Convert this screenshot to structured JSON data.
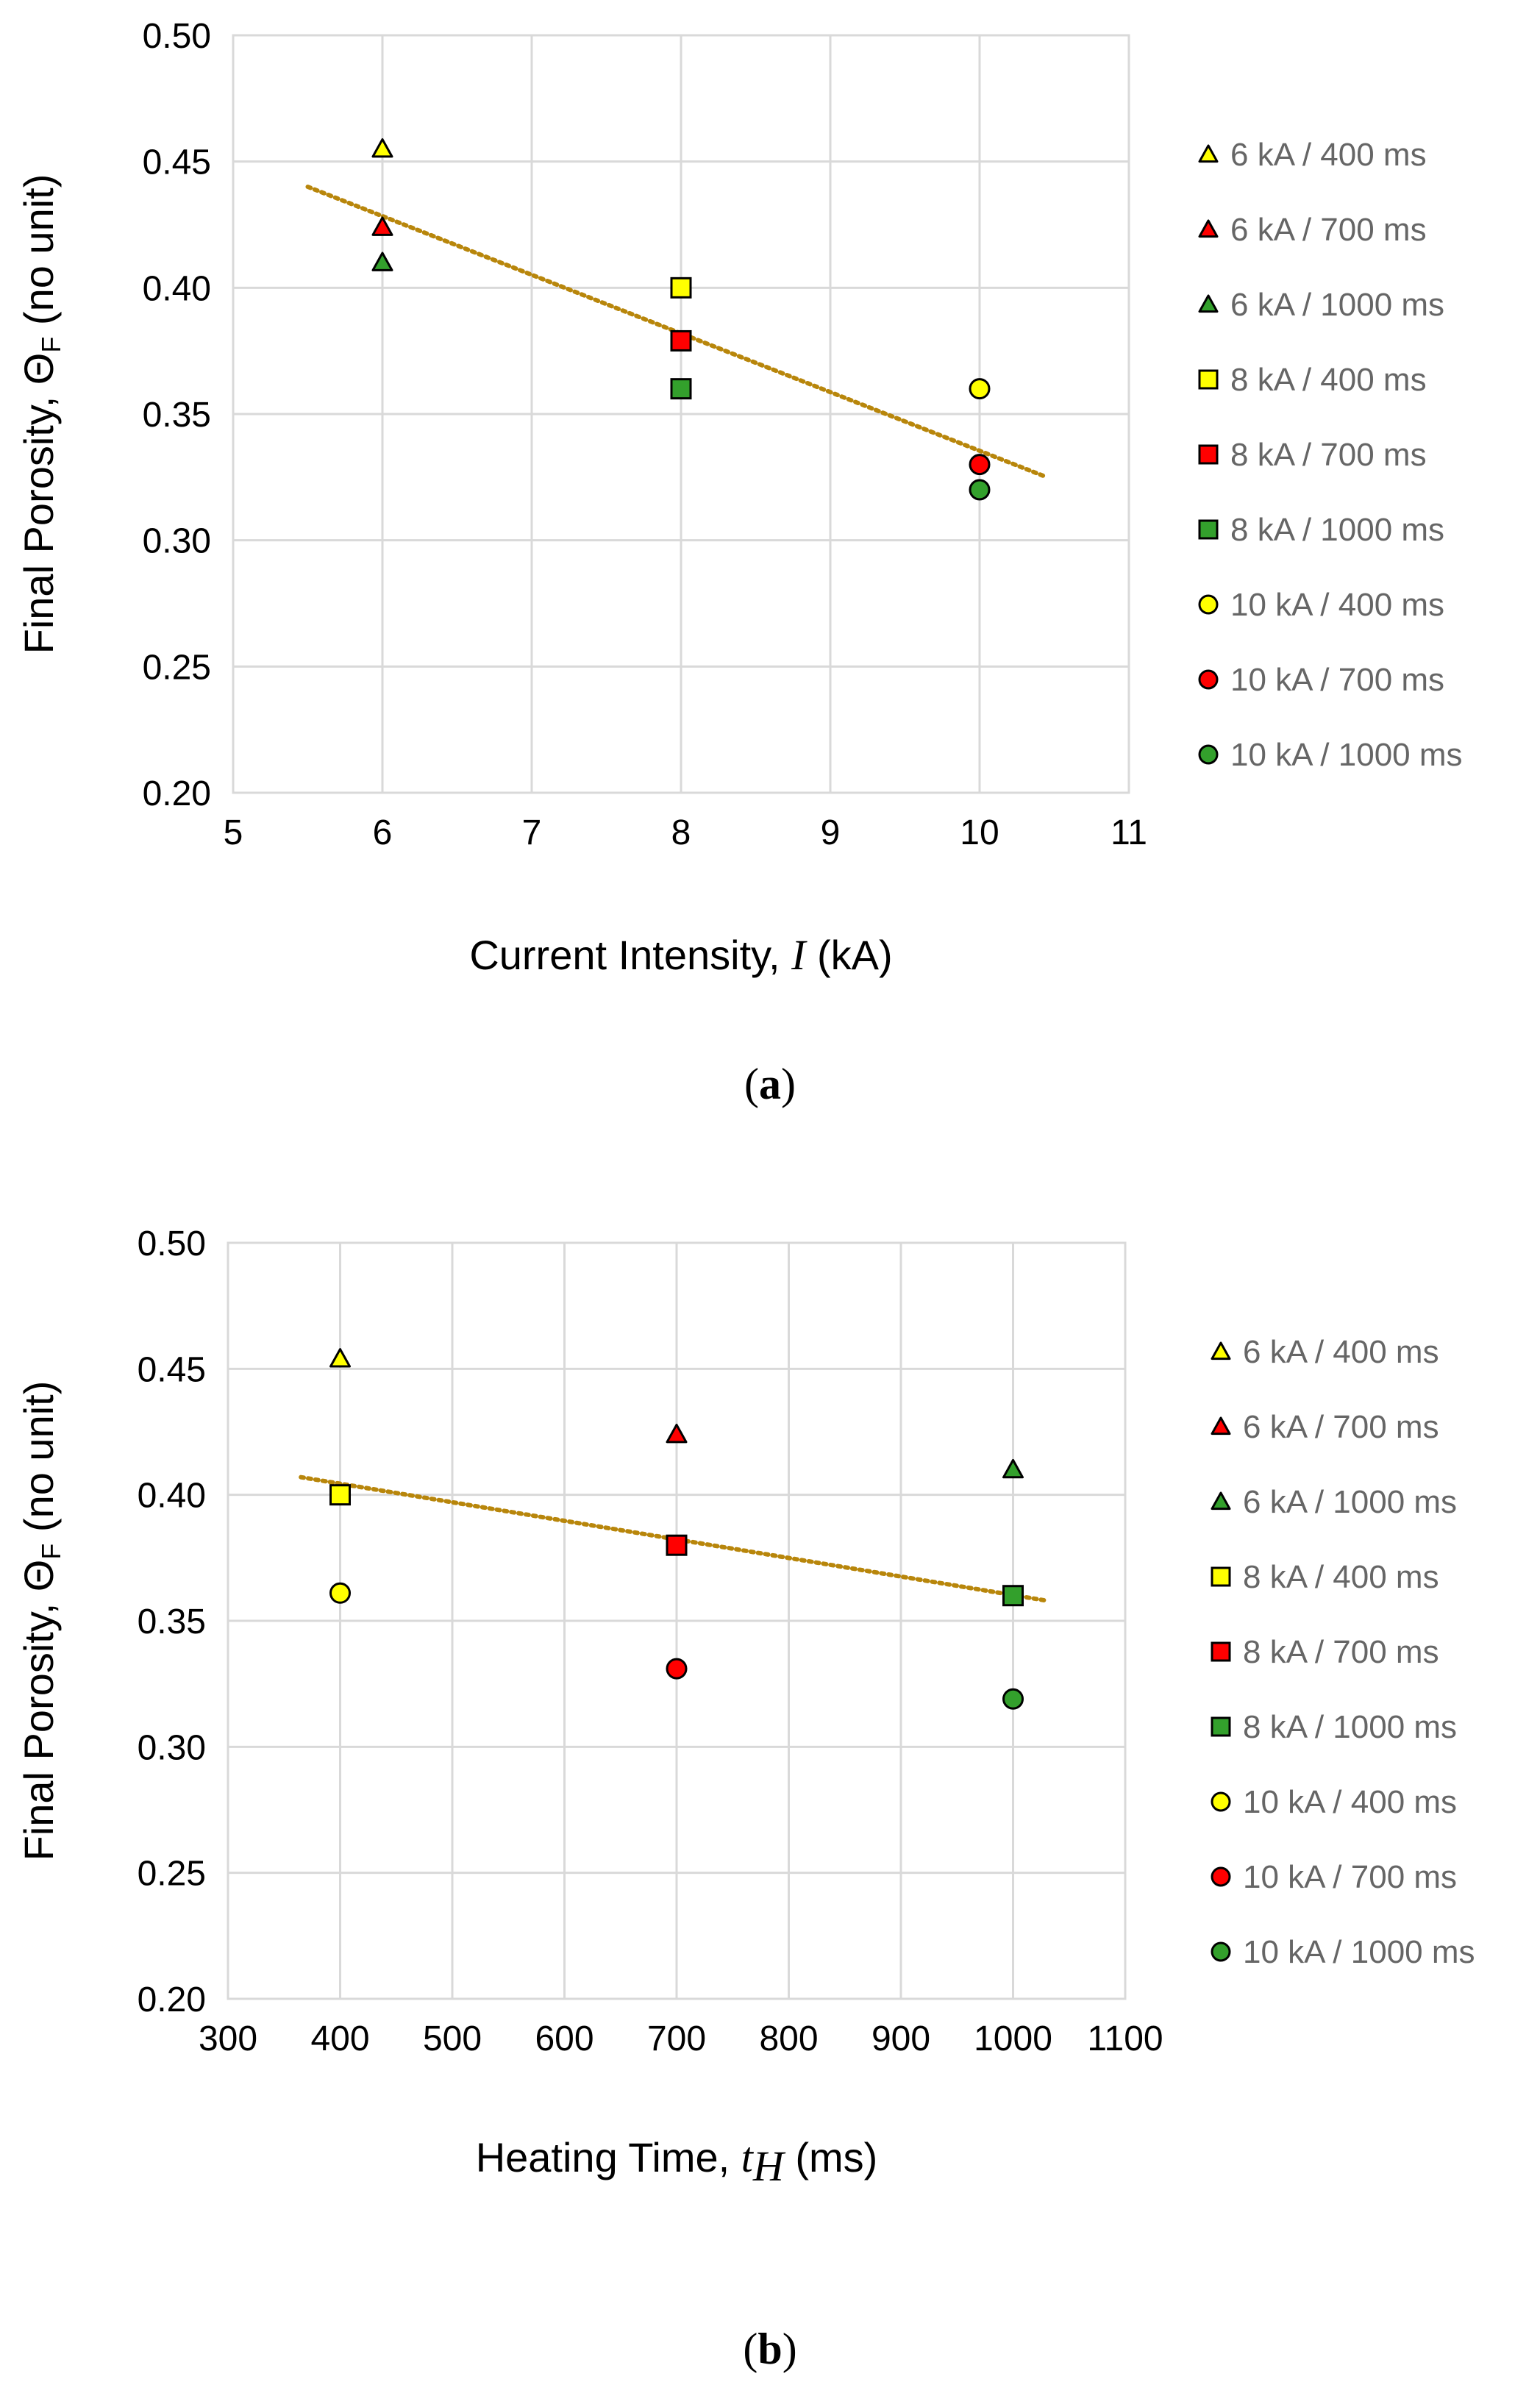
{
  "colors": {
    "yellow": "#ffff00",
    "red": "#ff0000",
    "green": "#33a02c",
    "trendline": "#b8860b",
    "grid": "#d9d9d9",
    "legend_text": "#666666"
  },
  "chart_data": [
    {
      "type": "scatter",
      "panel": {
        "open": "(",
        "letter": "a",
        "close": ")"
      },
      "xlabel": {
        "prefix": "Current Intensity, ",
        "symbol": "I",
        "suffix": "  (kA)"
      },
      "ylabel": {
        "prefix": "Final Porosity, Θ",
        "sub": "F",
        "suffix": "  (no unit)"
      },
      "xlim": [
        5,
        11
      ],
      "ylim": [
        0.2,
        0.5
      ],
      "xticks": [
        "5",
        "6",
        "7",
        "8",
        "9",
        "10",
        "11"
      ],
      "yticks": [
        "0.20",
        "0.25",
        "0.30",
        "0.35",
        "0.40",
        "0.45",
        "0.50"
      ],
      "grid": true,
      "legend_position": "right",
      "series": [
        {
          "name": "6 kA / 400 ms",
          "marker": "triangle",
          "color": "yellow",
          "x": 6,
          "y": 0.455
        },
        {
          "name": "6 kA / 700 ms",
          "marker": "triangle",
          "color": "red",
          "x": 6,
          "y": 0.424
        },
        {
          "name": "6 kA / 1000 ms",
          "marker": "triangle",
          "color": "green",
          "x": 6,
          "y": 0.41
        },
        {
          "name": "8 kA / 400 ms",
          "marker": "square",
          "color": "yellow",
          "x": 8,
          "y": 0.4
        },
        {
          "name": "8 kA / 700 ms",
          "marker": "square",
          "color": "red",
          "x": 8,
          "y": 0.379
        },
        {
          "name": "8 kA / 1000 ms",
          "marker": "square",
          "color": "green",
          "x": 8,
          "y": 0.36
        },
        {
          "name": "10 kA / 400 ms",
          "marker": "circle",
          "color": "yellow",
          "x": 10,
          "y": 0.36
        },
        {
          "name": "10 kA / 700 ms",
          "marker": "circle",
          "color": "red",
          "x": 10,
          "y": 0.33
        },
        {
          "name": "10 kA / 1000 ms",
          "marker": "circle",
          "color": "green",
          "x": 10,
          "y": 0.32
        }
      ],
      "trendline": {
        "style": "dotted",
        "x": [
          5.5,
          10.45
        ],
        "y": [
          0.44,
          0.325
        ]
      }
    },
    {
      "type": "scatter",
      "panel": {
        "open": "(",
        "letter": "b",
        "close": ")"
      },
      "xlabel": {
        "prefix": "Heating Time, ",
        "symbol": "t",
        "sub": "H",
        "suffix": "  (ms)"
      },
      "ylabel": {
        "prefix": "Final Porosity, Θ",
        "sub": "F",
        "suffix": " (no unit)"
      },
      "xlim": [
        300,
        1100
      ],
      "ylim": [
        0.2,
        0.5
      ],
      "xticks": [
        "300",
        "400",
        "500",
        "600",
        "700",
        "800",
        "900",
        "1000",
        "1100"
      ],
      "yticks": [
        "0.20",
        "0.25",
        "0.30",
        "0.35",
        "0.40",
        "0.45",
        "0.50"
      ],
      "grid": true,
      "legend_position": "right",
      "series": [
        {
          "name": "6 kA / 400 ms",
          "marker": "triangle",
          "color": "yellow",
          "x": 400,
          "y": 0.454
        },
        {
          "name": "6 kA / 700 ms",
          "marker": "triangle",
          "color": "red",
          "x": 700,
          "y": 0.424
        },
        {
          "name": "6 kA / 1000 ms",
          "marker": "triangle",
          "color": "green",
          "x": 1000,
          "y": 0.41
        },
        {
          "name": "8 kA / 400 ms",
          "marker": "square",
          "color": "yellow",
          "x": 400,
          "y": 0.4
        },
        {
          "name": "8 kA / 700 ms",
          "marker": "square",
          "color": "red",
          "x": 700,
          "y": 0.38
        },
        {
          "name": "8 kA / 1000 ms",
          "marker": "square",
          "color": "green",
          "x": 1000,
          "y": 0.36
        },
        {
          "name": "10 kA / 400 ms",
          "marker": "circle",
          "color": "yellow",
          "x": 400,
          "y": 0.361
        },
        {
          "name": "10 kA / 700 ms",
          "marker": "circle",
          "color": "red",
          "x": 700,
          "y": 0.331
        },
        {
          "name": "10 kA / 1000 ms",
          "marker": "circle",
          "color": "green",
          "x": 1000,
          "y": 0.319
        }
      ],
      "trendline": {
        "style": "dotted",
        "x": [
          365,
          1030
        ],
        "y": [
          0.407,
          0.358
        ]
      }
    }
  ]
}
